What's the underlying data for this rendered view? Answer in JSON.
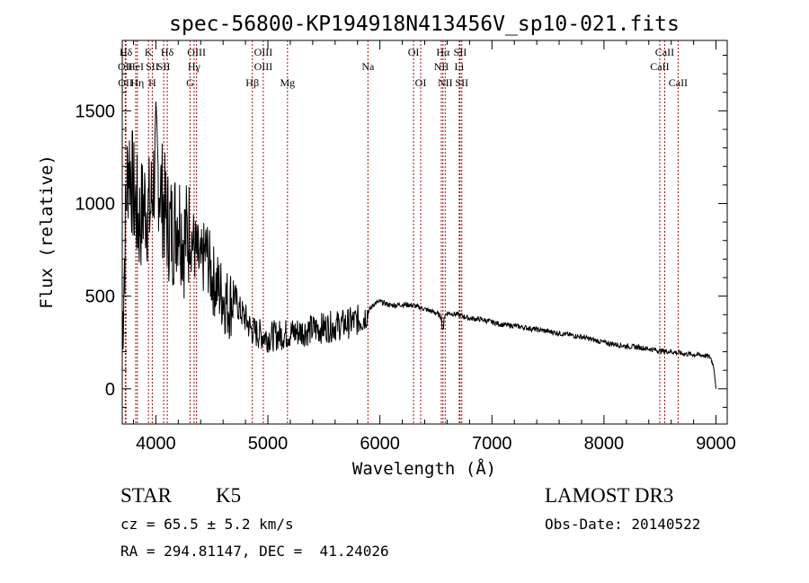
{
  "chart_data": {
    "type": "line",
    "title": "spec-56800-KP194918N413456V_sp10-021.fits",
    "xlabel": "Wavelength (Å)",
    "ylabel": "Flux (relative)",
    "xlim": [
      3700,
      9100
    ],
    "ylim": [
      -190,
      1880
    ],
    "xticks": [
      4000,
      5000,
      6000,
      7000,
      8000,
      9000
    ],
    "xtick_labels": [
      "4000",
      "5000",
      "6000",
      "7000",
      "8000",
      "9000"
    ],
    "yticks": [
      0,
      500,
      1000,
      1500
    ],
    "ytick_labels": [
      "0",
      "500",
      "1000",
      "1500"
    ],
    "series": [
      {
        "name": "flux",
        "x": [
          3700,
          3720,
          3740,
          3760,
          3780,
          3800,
          3850,
          3900,
          3950,
          4000,
          4050,
          4100,
          4150,
          4200,
          4250,
          4300,
          4350,
          4400,
          4450,
          4500,
          4550,
          4600,
          4650,
          4700,
          4750,
          4800,
          4850,
          4900,
          5000,
          5100,
          5200,
          5300,
          5400,
          5500,
          5600,
          5700,
          5750,
          5800,
          5850,
          5900,
          5950,
          6000,
          6100,
          6200,
          6300,
          6400,
          6500,
          6563,
          6600,
          6700,
          6800,
          6900,
          7000,
          7100,
          7200,
          7300,
          7400,
          7500,
          7600,
          7700,
          7800,
          7900,
          8000,
          8100,
          8200,
          8300,
          8400,
          8500,
          8600,
          8700,
          8800,
          8900,
          8950,
          8980,
          9000
        ],
        "values": [
          300,
          700,
          1100,
          1250,
          1150,
          1050,
          900,
          1000,
          950,
          1250,
          1050,
          900,
          850,
          950,
          800,
          850,
          750,
          650,
          750,
          600,
          550,
          500,
          450,
          500,
          420,
          380,
          320,
          300,
          280,
          290,
          300,
          310,
          320,
          330,
          340,
          350,
          360,
          370,
          380,
          420,
          460,
          470,
          450,
          455,
          450,
          430,
          410,
          380,
          410,
          400,
          380,
          375,
          360,
          345,
          340,
          330,
          320,
          310,
          300,
          290,
          280,
          265,
          250,
          240,
          230,
          225,
          215,
          205,
          200,
          190,
          185,
          180,
          170,
          120,
          0
        ]
      }
    ],
    "spectral_lines": [
      {
        "label": "Hδ",
        "x": 3733,
        "row": 1
      },
      {
        "label": "OII",
        "x": 3727,
        "row": 2
      },
      {
        "label": "OII",
        "x": 3729,
        "row": 3
      },
      {
        "label": "HeI",
        "x": 3820,
        "row": 2
      },
      {
        "label": "Hη",
        "x": 3835,
        "row": 3
      },
      {
        "label": "K",
        "x": 3934,
        "row": 1
      },
      {
        "label": "SII",
        "x": 3968,
        "row": 2
      },
      {
        "label": "H",
        "x": 3968,
        "row": 3
      },
      {
        "label": "Hδ",
        "x": 4102,
        "row": 1
      },
      {
        "label": "SII",
        "x": 4070,
        "row": 2
      },
      {
        "label": "OIII",
        "x": 4363,
        "row": 1
      },
      {
        "label": "Hγ",
        "x": 4341,
        "row": 2
      },
      {
        "label": "G",
        "x": 4305,
        "row": 3
      },
      {
        "label": "OIII",
        "x": 4959,
        "row": 1
      },
      {
        "label": "OIII",
        "x": 4959,
        "row": 2
      },
      {
        "label": "Hβ",
        "x": 4861,
        "row": 3
      },
      {
        "label": "Mg",
        "x": 5175,
        "row": 3
      },
      {
        "label": "Na",
        "x": 5893,
        "row": 2
      },
      {
        "label": "OI",
        "x": 6300,
        "row": 1
      },
      {
        "label": "OI",
        "x": 6364,
        "row": 3
      },
      {
        "label": "Hα",
        "x": 6563,
        "row": 1
      },
      {
        "label": "SII",
        "x": 6716,
        "row": 1
      },
      {
        "label": "NII",
        "x": 6548,
        "row": 2
      },
      {
        "label": "Li",
        "x": 6708,
        "row": 2
      },
      {
        "label": "NII",
        "x": 6583,
        "row": 3
      },
      {
        "label": "SII",
        "x": 6731,
        "row": 3
      },
      {
        "label": "CaII",
        "x": 8542,
        "row": 1
      },
      {
        "label": "CaII",
        "x": 8498,
        "row": 2
      },
      {
        "label": "CaII",
        "x": 8662,
        "row": 3
      }
    ],
    "info": {
      "class": "STAR",
      "subclass": "K5",
      "survey": "LAMOST DR3",
      "cz": "cz = 65.5 ± 5.2 km/s",
      "obs_date": "Obs-Date: 20140522",
      "coords": "RA = 294.81147, DEC =  41.24026"
    },
    "colors": {
      "line": "#000000",
      "marker": "#a01010"
    }
  }
}
